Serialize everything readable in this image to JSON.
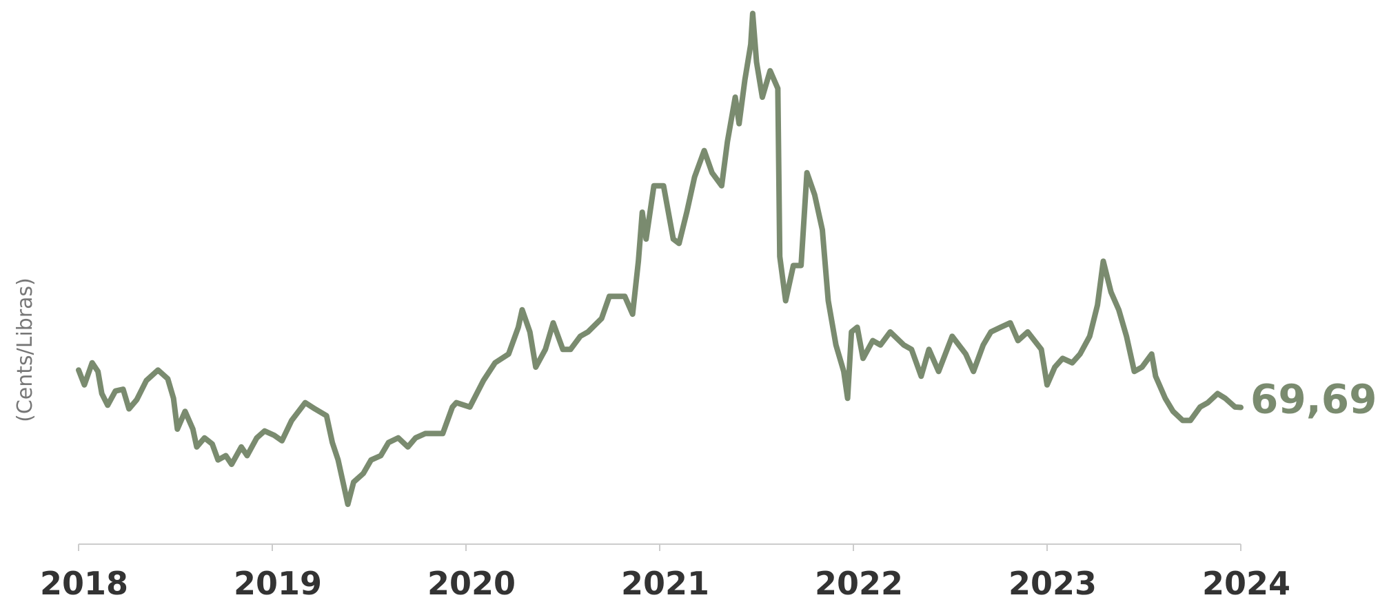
{
  "chart_data": {
    "type": "line",
    "y_label": "(Cents/Libras)",
    "end_label": "69,69",
    "xlim": [
      2018,
      2024
    ],
    "xticks": [
      2018,
      2019,
      2020,
      2021,
      2022,
      2023,
      2024
    ],
    "ylim": [
      32,
      182
    ],
    "color": "#7a8b6f",
    "x": [
      2018.0,
      2018.03,
      2018.07,
      2018.1,
      2018.12,
      2018.15,
      2018.19,
      2018.23,
      2018.26,
      2018.3,
      2018.35,
      2018.41,
      2018.46,
      2018.49,
      2018.51,
      2018.55,
      2018.59,
      2018.61,
      2018.65,
      2018.69,
      2018.72,
      2018.76,
      2018.79,
      2018.84,
      2018.87,
      2018.92,
      2018.96,
      2019.01,
      2019.05,
      2019.1,
      2019.17,
      2019.22,
      2019.28,
      2019.31,
      2019.34,
      2019.37,
      2019.39,
      2019.42,
      2019.47,
      2019.51,
      2019.56,
      2019.6,
      2019.65,
      2019.7,
      2019.74,
      2019.79,
      2019.88,
      2019.93,
      2019.95,
      2020.02,
      2020.09,
      2020.15,
      2020.22,
      2020.27,
      2020.29,
      2020.33,
      2020.36,
      2020.41,
      2020.45,
      2020.5,
      2020.54,
      2020.59,
      2020.63,
      2020.7,
      2020.74,
      2020.82,
      2020.86,
      2020.89,
      2020.91,
      2020.93,
      2020.97,
      2021.02,
      2021.07,
      2021.1,
      2021.14,
      2021.18,
      2021.23,
      2021.27,
      2021.32,
      2021.35,
      2021.39,
      2021.41,
      2021.44,
      2021.47,
      2021.48,
      2021.5,
      2021.53,
      2021.57,
      2021.61,
      2021.62,
      2021.65,
      2021.69,
      2021.73,
      2021.76,
      2021.8,
      2021.84,
      2021.87,
      2021.91,
      2021.95,
      2021.97,
      2021.99,
      2022.02,
      2022.05,
      2022.1,
      2022.14,
      2022.19,
      2022.26,
      2022.3,
      2022.35,
      2022.39,
      2022.44,
      2022.51,
      2022.58,
      2022.62,
      2022.67,
      2022.71,
      2022.76,
      2022.81,
      2022.85,
      2022.9,
      2022.97,
      2023.0,
      2023.04,
      2023.08,
      2023.13,
      2023.17,
      2023.22,
      2023.26,
      2023.29,
      2023.33,
      2023.37,
      2023.41,
      2023.45,
      2023.49,
      2023.54,
      2023.56,
      2023.61,
      2023.65,
      2023.7,
      2023.74,
      2023.79,
      2023.83,
      2023.88,
      2023.92,
      2023.97,
      2024.0
    ],
    "values": [
      80.0,
      75.9,
      82.0,
      79.6,
      73.5,
      70.3,
      74.2,
      74.7,
      69.3,
      71.8,
      77.1,
      80.0,
      77.6,
      72.2,
      63.7,
      68.6,
      63.7,
      58.8,
      61.3,
      59.6,
      55.2,
      56.4,
      54.0,
      58.8,
      56.4,
      61.3,
      63.2,
      62.0,
      60.5,
      66.1,
      71.0,
      69.3,
      67.4,
      60.0,
      55.2,
      47.9,
      43.0,
      49.1,
      51.5,
      55.2,
      56.4,
      60.0,
      61.3,
      58.8,
      61.3,
      62.5,
      62.5,
      69.8,
      71.0,
      69.8,
      77.1,
      82.0,
      84.4,
      91.8,
      96.6,
      90.5,
      80.8,
      85.7,
      93.0,
      85.7,
      85.7,
      89.3,
      90.5,
      94.2,
      100.3,
      100.3,
      95.4,
      110.0,
      123.5,
      116.1,
      130.8,
      130.8,
      116.1,
      114.9,
      123.5,
      133.2,
      140.5,
      134.4,
      130.8,
      143.0,
      155.2,
      147.9,
      160.0,
      169.8,
      178.3,
      164.9,
      155.2,
      162.5,
      157.6,
      111.3,
      99.1,
      108.8,
      108.8,
      134.4,
      128.3,
      118.6,
      99.1,
      86.9,
      79.6,
      72.2,
      90.5,
      91.8,
      83.2,
      88.1,
      86.9,
      90.5,
      86.9,
      85.7,
      78.3,
      85.7,
      79.6,
      89.3,
      84.4,
      79.6,
      86.9,
      90.5,
      91.8,
      93.0,
      88.1,
      90.5,
      85.7,
      75.9,
      80.8,
      83.2,
      82.0,
      84.4,
      89.3,
      97.9,
      110.0,
      101.5,
      96.6,
      89.3,
      79.6,
      80.8,
      84.4,
      78.3,
      72.2,
      68.6,
      66.1,
      66.1,
      69.8,
      71.0,
      73.5,
      72.2,
      69.8,
      69.69
    ]
  }
}
